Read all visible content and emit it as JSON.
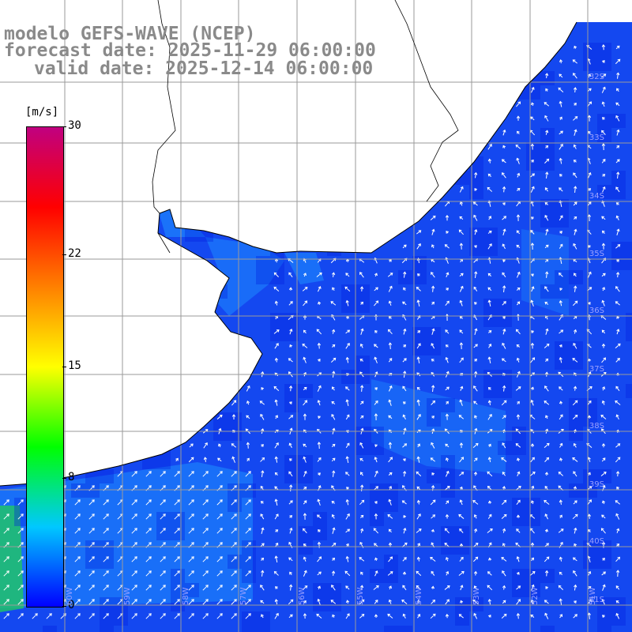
{
  "title": {
    "line1": "modelo GEFS-WAVE (NCEP)",
    "line2": "forecast date: 2025-11-29 06:00:00",
    "line3": "valid date: 2025-12-14 06:00:00"
  },
  "colorbar": {
    "units": "[m/s]",
    "ticks": [
      {
        "label": "30",
        "value": 30
      },
      {
        "label": "22",
        "value": 22
      },
      {
        "label": "15",
        "value": 15
      },
      {
        "label": "8",
        "value": 8
      },
      {
        "label": "0",
        "value": 0
      }
    ],
    "stops": [
      "#0000ff",
      "#00c8ff",
      "#00ff00",
      "#ffff00",
      "#ff8000",
      "#ff0000",
      "#c00080"
    ]
  },
  "lat_labels": [
    "32S",
    "33S",
    "34S",
    "35S",
    "36S",
    "37S",
    "38S",
    "39S",
    "40S",
    "41S"
  ],
  "lon_labels": [
    "60W",
    "59W",
    "58W",
    "57W",
    "56W",
    "55W",
    "54W",
    "53W",
    "52W",
    "51W"
  ],
  "colors": {
    "ocean_base": "#1448f0",
    "ocean_light": "#1e90ff",
    "land": "#ffffff",
    "grid": "#9a9a9a",
    "coast": "#000000",
    "arrow": "#ffffff"
  }
}
